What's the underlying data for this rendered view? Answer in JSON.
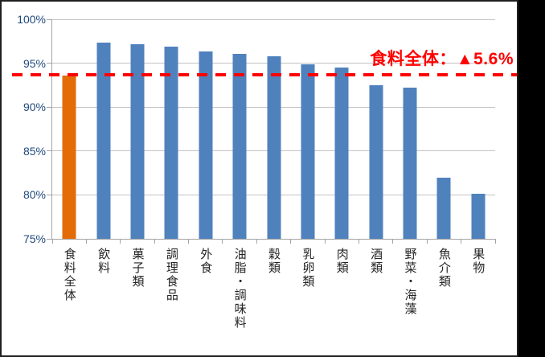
{
  "chart_data": {
    "type": "bar",
    "title": "",
    "xlabel": "",
    "ylabel": "",
    "categories": [
      "食料全体",
      "飲料",
      "菓子類",
      "調理食品",
      "外食",
      "油脂・調味料",
      "穀類",
      "乳卵類",
      "肉類",
      "酒類",
      "野菜・海藻",
      "魚介類",
      "果物"
    ],
    "values": [
      93.6,
      97.3,
      97.2,
      96.9,
      96.3,
      96.1,
      95.8,
      94.9,
      94.5,
      92.5,
      92.2,
      82.0,
      80.1
    ],
    "ylim": [
      75,
      100
    ],
    "yticks": [
      75,
      80,
      85,
      90,
      95,
      100
    ],
    "ytick_labels": [
      "75%",
      "80%",
      "85%",
      "90%",
      "95%",
      "100%"
    ],
    "grid": true,
    "legend": "none",
    "x_label_orientation": "vertical",
    "bar_color": "#4f81bd",
    "highlight_index": 0,
    "highlight_color": "#e36c09",
    "reference_line": {
      "value": 93.7,
      "style": "dashed",
      "color": "#ff0000",
      "label": "食料全体：▲5.6%"
    }
  },
  "colors": {
    "axis_label": "#1f497d",
    "category_label": "#262626",
    "gridline": "#c3c3c3",
    "annotation": "#ff0000",
    "background": "#ffffff",
    "outer_band": "#000000"
  }
}
